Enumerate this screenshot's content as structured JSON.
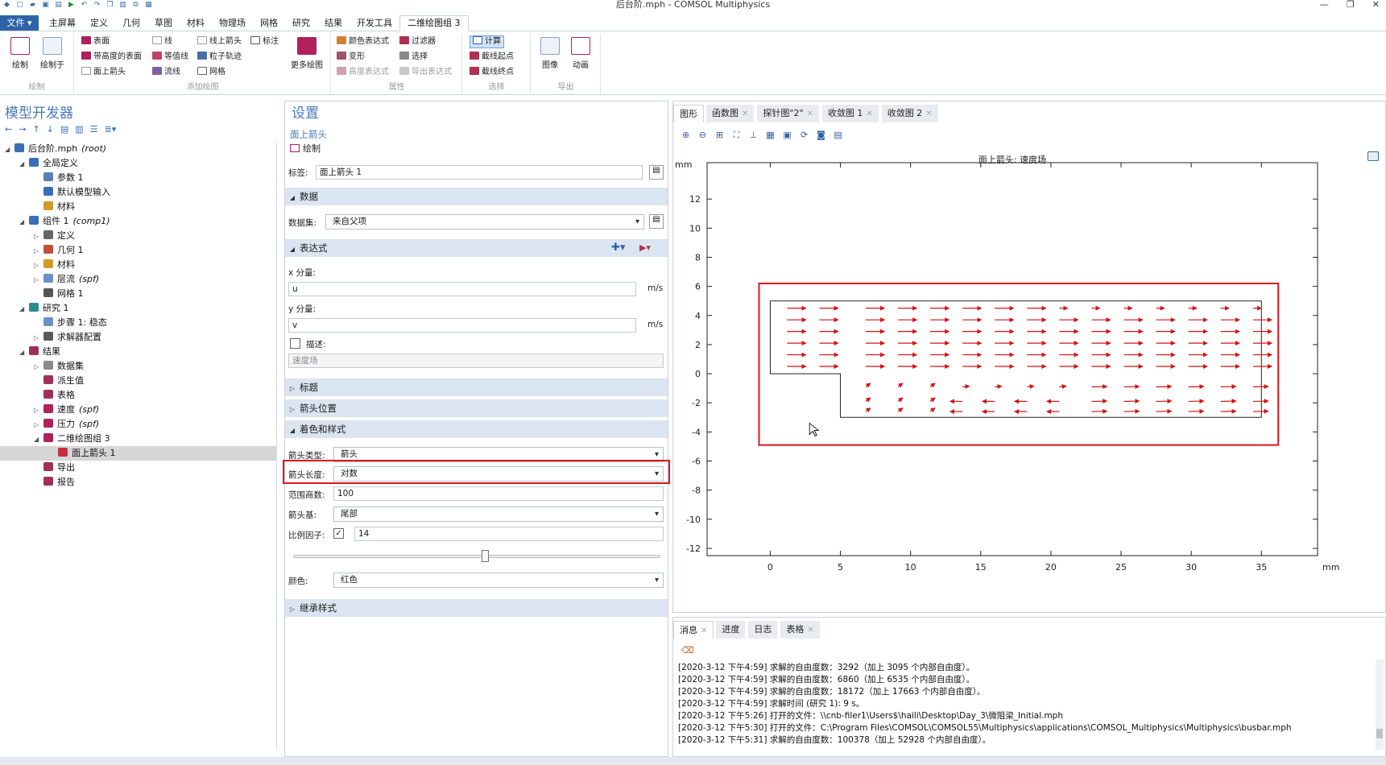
{
  "window": {
    "title": "后台阶.mph - COMSOL Multiphysics",
    "minimize": "—",
    "restore": "❐",
    "close": "✕"
  },
  "menubar": {
    "file": "文件 ▾",
    "tabs": [
      "主屏幕",
      "定义",
      "几何",
      "草图",
      "材料",
      "物理场",
      "网格",
      "研究",
      "结果",
      "开发工具",
      "二维绘图组 3"
    ]
  },
  "ribbon": {
    "groups": [
      "绘制",
      "添加绘图",
      "属性",
      "选择",
      "导出"
    ],
    "draw": [
      "绘制",
      "绘制于"
    ],
    "add_plot": [
      [
        "表面",
        "带高度的表面",
        "面上箭头"
      ],
      [
        "线",
        "等值线",
        "流线"
      ],
      [
        "线上箭头",
        "粒子轨迹",
        "网格"
      ],
      [
        "标注"
      ]
    ],
    "more_plots": "更多绘图",
    "attributes": [
      [
        "颜色表达式",
        "变形",
        "高度表达式"
      ],
      [
        "过滤器",
        "选择",
        "导出表达式"
      ]
    ],
    "selection": [
      "计算",
      "截线起点",
      "截线终点"
    ],
    "export": [
      "图像",
      "动画"
    ]
  },
  "tree": {
    "title": "模型开发器",
    "rows": [
      {
        "label": "后台阶.mph",
        "suffix": "(root)",
        "level": 0,
        "arrow": "◢",
        "color": "#3a6db5"
      },
      {
        "label": "全局定义",
        "suffix": "",
        "level": 1,
        "arrow": "◢",
        "color": "#3a6db5"
      },
      {
        "label": "参数 1",
        "suffix": "",
        "level": 2,
        "arrow": "",
        "color": "#5b7fb0"
      },
      {
        "label": "默认模型输入",
        "suffix": "",
        "level": 2,
        "arrow": "",
        "color": "#3a6db5"
      },
      {
        "label": "材料",
        "suffix": "",
        "level": 2,
        "arrow": "",
        "color": "#d19a2a"
      },
      {
        "label": "组件 1",
        "suffix": "(comp1)",
        "level": 1,
        "arrow": "◢",
        "color": "#3a6db5"
      },
      {
        "label": "定义",
        "suffix": "",
        "level": 2,
        "arrow": "▷",
        "color": "#666666"
      },
      {
        "label": "几何 1",
        "suffix": "",
        "level": 2,
        "arrow": "▷",
        "color": "#c0503a"
      },
      {
        "label": "材料",
        "suffix": "",
        "level": 2,
        "arrow": "▷",
        "color": "#d19a2a"
      },
      {
        "label": "层流",
        "suffix": "(spf)",
        "level": 2,
        "arrow": "▷",
        "color": "#6b8fc7"
      },
      {
        "label": "网格 1",
        "suffix": "",
        "level": 2,
        "arrow": "",
        "color": "#555555"
      },
      {
        "label": "研究 1",
        "suffix": "",
        "level": 1,
        "arrow": "◢",
        "color": "#2e8b8b"
      },
      {
        "label": "步骤 1: 稳态",
        "suffix": "",
        "level": 2,
        "arrow": "",
        "color": "#6b8fc7"
      },
      {
        "label": "求解器配置",
        "suffix": "",
        "level": 2,
        "arrow": "▷",
        "color": "#5a5a5a"
      },
      {
        "label": "结果",
        "suffix": "",
        "level": 1,
        "arrow": "◢",
        "color": "#a0305a"
      },
      {
        "label": "数据集",
        "suffix": "",
        "level": 2,
        "arrow": "▷",
        "color": "#8a8a8a"
      },
      {
        "label": "派生值",
        "suffix": "",
        "level": 2,
        "arrow": "",
        "color": "#a0305a"
      },
      {
        "label": "表格",
        "suffix": "",
        "level": 2,
        "arrow": "",
        "color": "#a0305a"
      },
      {
        "label": "速度",
        "suffix": "(spf)",
        "level": 2,
        "arrow": "▷",
        "color": "#b0205a"
      },
      {
        "label": "压力",
        "suffix": "(spf)",
        "level": 2,
        "arrow": "▷",
        "color": "#b0205a"
      },
      {
        "label": "二维绘图组 3",
        "suffix": "",
        "level": 2,
        "arrow": "◢",
        "color": "#b0205a"
      },
      {
        "label": "面上箭头 1",
        "suffix": "",
        "level": 3,
        "arrow": "",
        "color": "#c03040",
        "selected": true
      },
      {
        "label": "导出",
        "suffix": "",
        "level": 2,
        "arrow": "",
        "color": "#a0305a"
      },
      {
        "label": "报告",
        "suffix": "",
        "level": 2,
        "arrow": "",
        "color": "#a0305a"
      }
    ]
  },
  "settings": {
    "title": "设置",
    "subtitle": "面上箭头",
    "draw_button": "绘制",
    "label_name": "标签:",
    "label_value": "面上箭头 1",
    "sections": {
      "data": "数据",
      "expression": "表达式",
      "title": "标题",
      "arrow_position": "箭头位置",
      "coloring": "着色和样式",
      "inherit": "继承样式"
    },
    "dataset_label": "数据集:",
    "dataset_value": "来自父项",
    "x_label": "x 分量:",
    "x_value": "u",
    "x_unit": "m/s",
    "y_label": "y 分量:",
    "y_value": "v",
    "y_unit": "m/s",
    "desc_label": "描述:",
    "desc_value": "速度场",
    "arrow_type_label": "箭头类型:",
    "arrow_type_value": "箭头",
    "arrow_length_label": "箭头长度:",
    "arrow_length_value": "对数",
    "range_label": "范围商数:",
    "range_value": "100",
    "arrow_base_label": "箭头基:",
    "arrow_base_value": "尾部",
    "scale_label": "比例因子:",
    "scale_value": "14",
    "scale_checked": "✓",
    "slider_level": 0.52,
    "color_label": "颜色:",
    "color_value": "红色"
  },
  "graphics": {
    "tabs": [
      "图形",
      "函数图",
      "探针图\"2\"",
      "收敛图 1",
      "收敛图 2"
    ],
    "plot_title": "面上箭头: 速度场",
    "x_unit": "mm",
    "y_unit": "mm",
    "arrow_color": "#d81010",
    "highlight_color": "#e0141e"
  },
  "chart_data": {
    "type": "quiver",
    "title": "面上箭头: 速度场",
    "xlabel": "mm",
    "ylabel": "mm",
    "xlim": [
      -4.5,
      39
    ],
    "ylim": [
      -12.5,
      14.5
    ],
    "xticks": [
      0,
      5,
      10,
      15,
      20,
      25,
      30,
      35
    ],
    "yticks": [
      -12,
      -10,
      -8,
      -6,
      -4,
      -2,
      0,
      2,
      4,
      6,
      8,
      10,
      12
    ],
    "geometry": {
      "inlet": {
        "x": [
          0,
          5
        ],
        "y": [
          0,
          5
        ]
      },
      "channel": {
        "x": [
          5,
          35
        ],
        "y": [
          -3,
          5
        ]
      }
    }
  },
  "messages": {
    "tabs": [
      "消息",
      "进度",
      "日志",
      "表格"
    ],
    "lines": [
      "[2020-3-12 下午4:59] 求解的自由度数：3292（加上 3095 个内部自由度）。",
      "[2020-3-12 下午4:59] 求解的自由度数：6860（加上 6535 个内部自由度）。",
      "[2020-3-12 下午4:59] 求解的自由度数：18172（加上 17663 个内部自由度）。",
      "[2020-3-12 下午4:59] 求解时间 (研究 1): 9 s。",
      "[2020-3-12 下午5:26] 打开的文件：\\\\cnb-filer1\\Users$\\haili\\Desktop\\Day_3\\微阻梁_Initial.mph",
      "[2020-3-12 下午5:30] 打开的文件：C:\\Program Files\\COMSOL\\COMSOL55\\Multiphysics\\applications\\COMSOL_Multiphysics\\Multiphysics\\busbar.mph",
      "[2020-3-12 下午5:31] 求解的自由度数：100378（加上 52928 个内部自由度）。"
    ]
  }
}
